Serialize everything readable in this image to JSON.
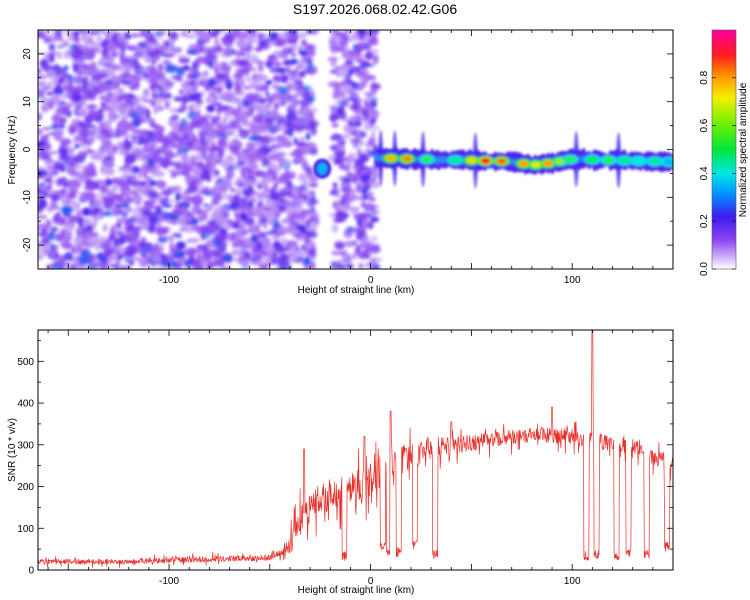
{
  "title": "S197.2026.068.02.42.G06",
  "chart_data": [
    {
      "type": "heatmap",
      "name": "spectrogram",
      "xlabel": "Height of straight line (km)",
      "ylabel": "Frequency (Hz)",
      "xlim": [
        -165,
        150
      ],
      "ylim": [
        -25,
        25
      ],
      "x_ticks": [
        -100,
        0,
        100
      ],
      "x_tick_labels": [
        "-100",
        "0",
        "100"
      ],
      "y_ticks": [
        -20,
        -10,
        0,
        10,
        20
      ],
      "y_tick_labels": [
        "-20",
        "-10",
        "0",
        "10",
        "20"
      ],
      "noise_regions_km": [
        [
          -165,
          -28
        ],
        [
          -19,
          3
        ]
      ],
      "signal_gaps_km": [
        [
          -28,
          -19
        ],
        [
          3,
          5
        ]
      ],
      "signal_band": {
        "x_range_km": [
          3,
          150
        ],
        "center_freq_hz": [
          {
            "x": 5,
            "f": -1.8
          },
          {
            "x": 40,
            "f": -2.2
          },
          {
            "x": 70,
            "f": -2.5
          },
          {
            "x": 80,
            "f": -3.3
          },
          {
            "x": 90,
            "f": -2.8
          },
          {
            "x": 100,
            "f": -2.0
          },
          {
            "x": 150,
            "f": -2.6
          }
        ],
        "bursts_km": [
          {
            "x": 10,
            "amp": 0.78
          },
          {
            "x": 18,
            "amp": 0.82
          },
          {
            "x": 28,
            "amp": 0.55
          },
          {
            "x": 42,
            "amp": 0.45
          },
          {
            "x": 50,
            "amp": 0.75
          },
          {
            "x": 57,
            "amp": 0.9
          },
          {
            "x": 65,
            "amp": 0.85
          },
          {
            "x": 76,
            "amp": 0.8
          },
          {
            "x": 82,
            "amp": 0.7
          },
          {
            "x": 88,
            "amp": 0.8
          },
          {
            "x": 94,
            "amp": 0.65
          },
          {
            "x": 99,
            "amp": 0.55
          },
          {
            "x": 110,
            "amp": 0.5
          },
          {
            "x": 118,
            "amp": 0.55
          },
          {
            "x": 126,
            "amp": 0.45
          },
          {
            "x": 133,
            "amp": 0.4
          },
          {
            "x": 141,
            "amp": 0.45
          },
          {
            "x": 148,
            "amp": 0.35
          }
        ],
        "vertical_spikes_km": [
          5,
          12,
          26,
          52,
          102,
          123
        ]
      },
      "isolated_blob": {
        "x": -24,
        "f": -4,
        "amp": 0.35
      }
    },
    {
      "type": "colorbar",
      "label": "Normalized spectral amplitude",
      "range": [
        0,
        1
      ],
      "ticks": [
        0.0,
        0.2,
        0.4,
        0.6,
        0.8
      ],
      "tick_labels": [
        "0.0",
        "0.2",
        "0.4",
        "0.6",
        "0.8"
      ]
    },
    {
      "type": "line",
      "name": "snr",
      "xlabel": "Height of straight line (km)",
      "ylabel": "SNR (10 * v/v)",
      "xlim": [
        -165,
        150
      ],
      "ylim": [
        0,
        575
      ],
      "x_ticks": [
        -100,
        0,
        100
      ],
      "x_tick_labels": [
        "-100",
        "0",
        "100"
      ],
      "y_ticks": [
        0,
        100,
        200,
        300,
        400,
        500
      ],
      "y_tick_labels": [
        "0",
        "100",
        "200",
        "300",
        "400",
        "500"
      ],
      "color": "#e8302a",
      "baseline_points": [
        {
          "x": -165,
          "y": 20
        },
        {
          "x": -120,
          "y": 20
        },
        {
          "x": -85,
          "y": 25
        },
        {
          "x": -50,
          "y": 30
        },
        {
          "x": -42,
          "y": 45
        },
        {
          "x": -35,
          "y": 120
        },
        {
          "x": -28,
          "y": 160
        },
        {
          "x": -20,
          "y": 180
        },
        {
          "x": -10,
          "y": 190
        },
        {
          "x": 0,
          "y": 215
        },
        {
          "x": 10,
          "y": 255
        },
        {
          "x": 20,
          "y": 270
        },
        {
          "x": 30,
          "y": 290
        },
        {
          "x": 40,
          "y": 300
        },
        {
          "x": 55,
          "y": 310
        },
        {
          "x": 70,
          "y": 318
        },
        {
          "x": 85,
          "y": 325
        },
        {
          "x": 100,
          "y": 320
        },
        {
          "x": 110,
          "y": 310
        },
        {
          "x": 130,
          "y": 300
        },
        {
          "x": 150,
          "y": 250
        }
      ],
      "noise_amplitude": [
        {
          "x": -165,
          "a": 10
        },
        {
          "x": -45,
          "a": 12
        },
        {
          "x": -38,
          "a": 60
        },
        {
          "x": 0,
          "a": 70
        },
        {
          "x": 30,
          "a": 45
        },
        {
          "x": 60,
          "a": 30
        },
        {
          "x": 150,
          "a": 35
        }
      ],
      "dips": [
        {
          "x": -13,
          "y": 20
        },
        {
          "x": 6,
          "y": 40
        },
        {
          "x": 9,
          "y": 35
        },
        {
          "x": 14,
          "y": 30
        },
        {
          "x": 22,
          "y": 45
        },
        {
          "x": 32,
          "y": 25
        },
        {
          "x": 107,
          "y": 20
        },
        {
          "x": 112,
          "y": 25
        },
        {
          "x": 122,
          "y": 20
        },
        {
          "x": 128,
          "y": 30
        },
        {
          "x": 137,
          "y": 25
        },
        {
          "x": 147,
          "y": 45
        }
      ],
      "spikes": [
        {
          "x": -33,
          "y": 290
        },
        {
          "x": -3,
          "y": 320
        },
        {
          "x": 10,
          "y": 380
        },
        {
          "x": 40,
          "y": 355
        },
        {
          "x": 90,
          "y": 390
        },
        {
          "x": 110,
          "y": 580
        }
      ]
    }
  ]
}
